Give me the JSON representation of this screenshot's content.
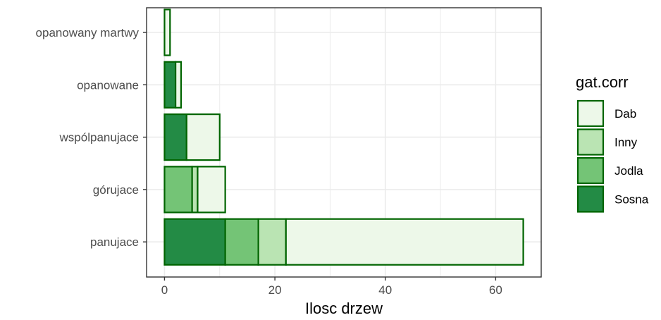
{
  "chart_data": {
    "type": "bar",
    "orientation": "horizontal",
    "stacked": true,
    "categories": [
      "opanowany martwy",
      "opanowane",
      "współpanujace",
      "górujace",
      "panujace"
    ],
    "category_labels": [
      "opanowany martwy",
      "opanowane",
      "wspólpanujace",
      "górujace",
      "panujace"
    ],
    "series": [
      {
        "name": "Sosna",
        "values": [
          0,
          2,
          4,
          0,
          11
        ],
        "color": "#238b45"
      },
      {
        "name": "Jodla",
        "values": [
          0,
          0,
          0,
          5,
          6
        ],
        "color": "#74c476"
      },
      {
        "name": "Inny",
        "values": [
          0,
          0,
          0,
          1,
          5
        ],
        "color": "#bae4b3"
      },
      {
        "name": "Dab",
        "values": [
          1,
          1,
          6,
          5,
          43
        ],
        "color": "#edf8e9"
      }
    ],
    "stack_order": [
      "Sosna",
      "Jodla",
      "Inny",
      "Dab"
    ],
    "xlabel": "Ilosc drzew",
    "ylabel": "",
    "xlim": [
      -3.25,
      68.25
    ],
    "x_ticks": [
      0,
      20,
      40,
      60
    ],
    "x_tick_labels": [
      "0",
      "20",
      "40",
      "60"
    ],
    "grid": true,
    "bar_border_color": "#006400",
    "legend": {
      "title": "gat.corr",
      "placement": "right",
      "items": [
        "Dab",
        "Inny",
        "Jodla",
        "Sosna"
      ]
    }
  }
}
